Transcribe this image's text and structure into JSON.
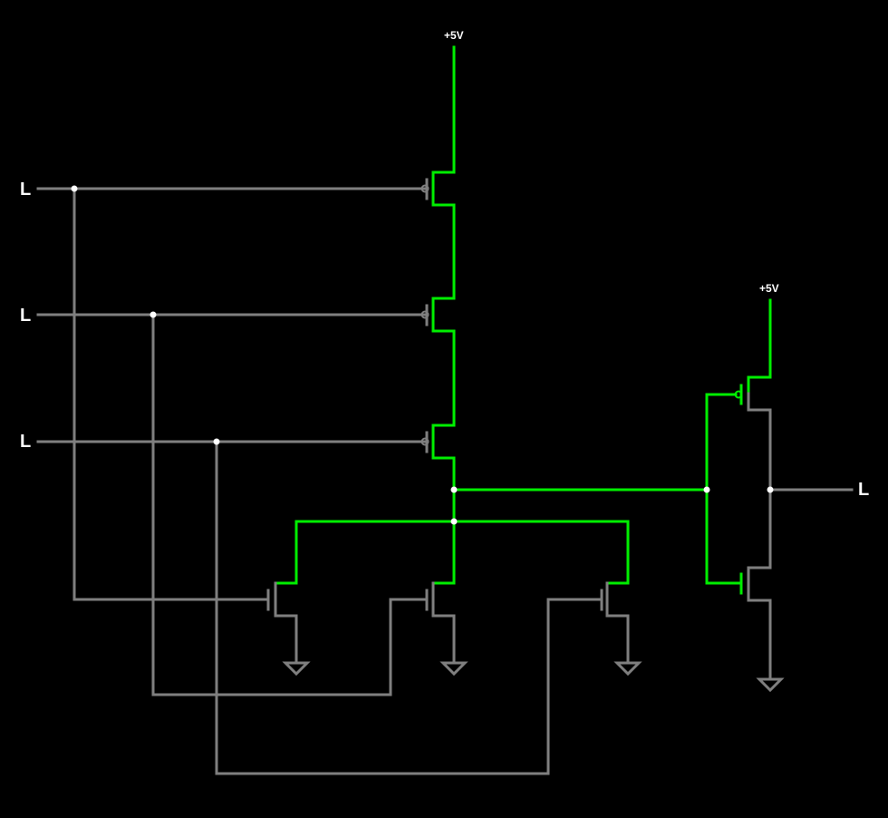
{
  "inputs": [
    {
      "label": "L"
    },
    {
      "label": "L"
    },
    {
      "label": "L"
    }
  ],
  "output": {
    "label": "L"
  },
  "supply": [
    {
      "label": "+5V"
    },
    {
      "label": "+5V"
    }
  ],
  "colors": {
    "background": "#000000",
    "wire_low": "#7f7f7f",
    "wire_high": "#00ee00",
    "junction": "#ffffff",
    "text": "#ffffff"
  }
}
